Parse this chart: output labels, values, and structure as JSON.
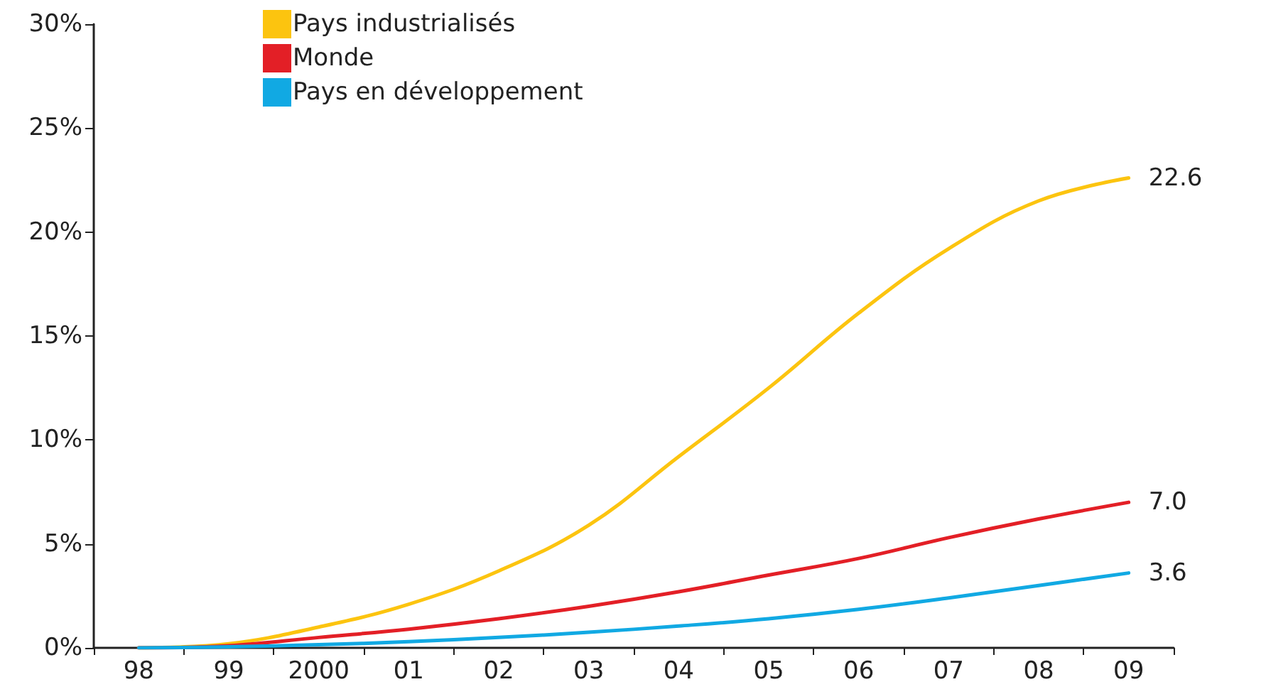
{
  "chart_data": {
    "type": "line",
    "categories": [
      "98",
      "99",
      "2000",
      "01",
      "02",
      "03",
      "04",
      "05",
      "06",
      "07",
      "08",
      "09"
    ],
    "ylim": [
      0,
      30
    ],
    "yticks": [
      {
        "value": 0,
        "label": "0%"
      },
      {
        "value": 5,
        "label": "5%"
      },
      {
        "value": 10,
        "label": "10%"
      },
      {
        "value": 15,
        "label": "15%"
      },
      {
        "value": 20,
        "label": "20%"
      },
      {
        "value": 25,
        "label": "25%"
      },
      {
        "value": 30,
        "label": "30%"
      }
    ],
    "series": [
      {
        "name": "Pays industrialisés",
        "color": "#fcc40f",
        "values": [
          0,
          0.2,
          1.0,
          2.1,
          3.7,
          5.9,
          9.2,
          12.5,
          16.1,
          19.2,
          21.5,
          22.6
        ],
        "value_labels": [
          null,
          null,
          null,
          null,
          null,
          null,
          null,
          null,
          null,
          null,
          null,
          "22.6"
        ]
      },
      {
        "name": "Monde",
        "color": "#e31f26",
        "values": [
          0,
          0.1,
          0.5,
          0.9,
          1.4,
          2.0,
          2.7,
          3.5,
          4.3,
          5.3,
          6.2,
          7.0
        ],
        "value_labels": [
          null,
          null,
          null,
          null,
          null,
          null,
          null,
          null,
          null,
          null,
          null,
          "7.0"
        ]
      },
      {
        "name": "Pays en développement",
        "color": "#11a9e3",
        "values": [
          0,
          0.05,
          0.15,
          0.3,
          0.5,
          0.75,
          1.05,
          1.4,
          1.85,
          2.4,
          3.0,
          3.6
        ],
        "value_labels": [
          null,
          null,
          null,
          null,
          null,
          null,
          null,
          null,
          null,
          null,
          null,
          "3.6"
        ]
      }
    ],
    "legend": "top left",
    "grid": false,
    "marker": "none",
    "line_style": "solid"
  }
}
